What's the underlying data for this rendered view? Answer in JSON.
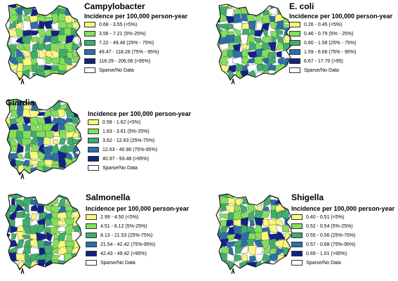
{
  "colors": {
    "class1": "#f8f87c",
    "class2": "#82e05a",
    "class3": "#3fae6c",
    "class4": "#2b6fa8",
    "class5": "#122286",
    "no_data": "#ffffff"
  },
  "panels": [
    {
      "id": "campylobacter",
      "title": "Campylobacter",
      "subtitle": "Incidence per 100,000 person-year",
      "legend": [
        {
          "label": "0.68 - 3.55 (<5%)",
          "color_key": "class1"
        },
        {
          "label": "3.56 - 7.21 (5%-25%)",
          "color_key": "class2"
        },
        {
          "label": "7.22 - 49.46 (25% - 75%)",
          "color_key": "class3"
        },
        {
          "label": "49.47 - 118.28 (75% - 95%)",
          "color_key": "class4"
        },
        {
          "label": "118.29 - 206.06 (>95%)",
          "color_key": "class5"
        },
        {
          "label": "Sparse/No Data",
          "color_key": "no_data"
        }
      ]
    },
    {
      "id": "ecoli",
      "title": "E. coli",
      "subtitle": "Incidence per 100,000 person-year",
      "legend": [
        {
          "label": "0.26 - 0.45 (<5%)",
          "color_key": "class1"
        },
        {
          "label": "0.46 - 0.79 (5% - 25%)",
          "color_key": "class2"
        },
        {
          "label": "0.80 - 1.58 (25% - 75%)",
          "color_key": "class3"
        },
        {
          "label": "1.59 - 6.66 (75% - 95%)",
          "color_key": "class4"
        },
        {
          "label": "6.67 - 17.70 (>95)",
          "color_key": "class5"
        },
        {
          "label": "Sparse/No Data",
          "color_key": "no_data"
        }
      ]
    },
    {
      "id": "giardia",
      "title": "Giardia",
      "subtitle": "Incidence per 100,000 person-year",
      "legend": [
        {
          "label": "0.58 - 1.62 (<5%)",
          "color_key": "class1"
        },
        {
          "label": "1.63 - 3.61 (5%-25%)",
          "color_key": "class2"
        },
        {
          "label": "3.62 - 12.63 (25%-75%)",
          "color_key": "class3"
        },
        {
          "label": "12.63 - 40.96 (75%-95%)",
          "color_key": "class4"
        },
        {
          "label": "40.97 - 93.48 (>95%)",
          "color_key": "class5"
        },
        {
          "label": "Sparse/No Data",
          "color_key": "no_data"
        }
      ]
    },
    {
      "id": "salmonella",
      "title": "Salmonella",
      "subtitle": "Incidence per 100,000 person-year",
      "legend": [
        {
          "label": "2.99 - 4.50 (<5%)",
          "color_key": "class1"
        },
        {
          "label": "4.51 - 8.12 (5%-25%)",
          "color_key": "class2"
        },
        {
          "label": "8.13 - 21.53 (25%-75%)",
          "color_key": "class3"
        },
        {
          "label": "21.54 - 42.42 (75%-95%)",
          "color_key": "class4"
        },
        {
          "label": "42.43 - 49.42 (>95%)",
          "color_key": "class5"
        },
        {
          "label": "Sparse/No Data",
          "color_key": "no_data"
        }
      ]
    },
    {
      "id": "shigella",
      "title": "Shigella",
      "subtitle": "Incidence per 100,000 person-year",
      "legend": [
        {
          "label": "0.40 - 0.51 (<5%)",
          "color_key": "class1"
        },
        {
          "label": "0.52 - 0.54 (5%-25%)",
          "color_key": "class2"
        },
        {
          "label": "0.55 - 0.56 (25%-75%)",
          "color_key": "class3"
        },
        {
          "label": "0.57 - 0.68 (75%-95%)",
          "color_key": "class4"
        },
        {
          "label": "0.69 - 1.01 (>95%)",
          "color_key": "class5"
        },
        {
          "label": "Sparse/No Data",
          "color_key": "no_data"
        }
      ]
    }
  ]
}
